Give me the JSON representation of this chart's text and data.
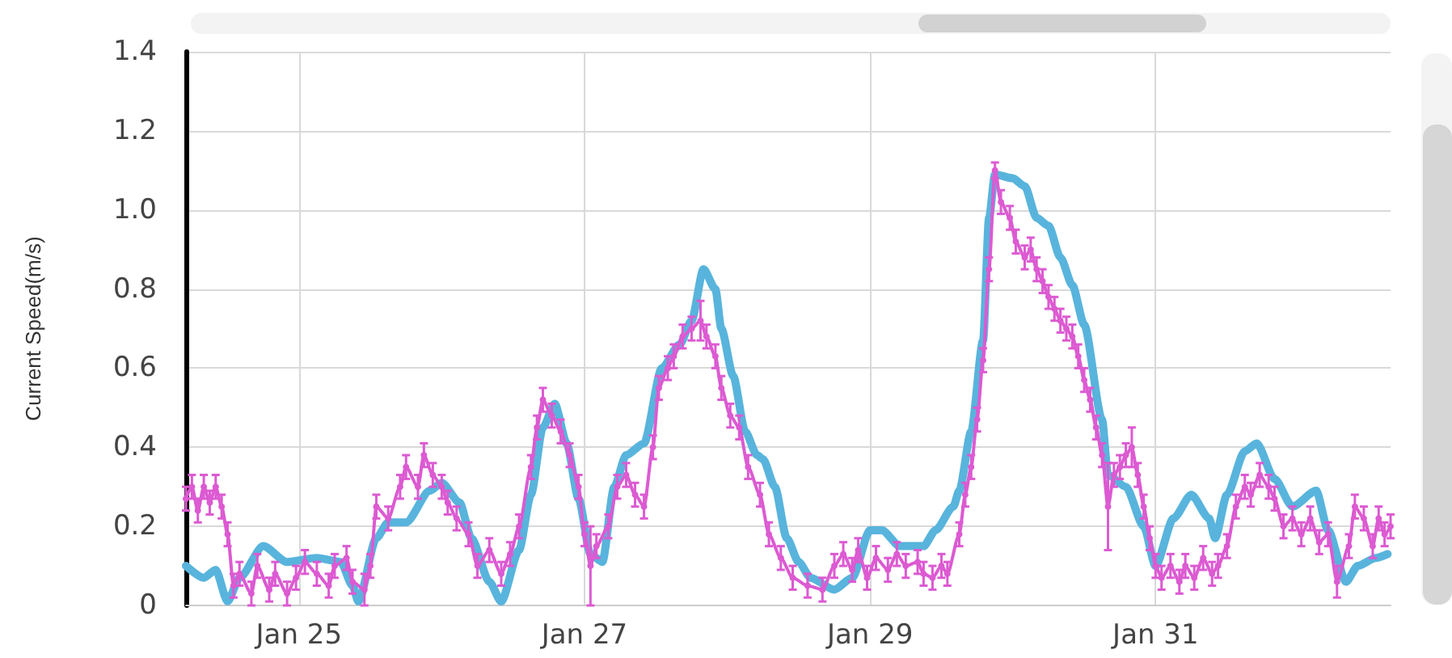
{
  "chart_data": {
    "type": "line",
    "ylabel": "Current Speed(m/s)",
    "xlim": [
      "--01-24T05:00",
      "--02-01T15:30"
    ],
    "xticks": [
      {
        "value": "--01-25",
        "label": "Jan 25"
      },
      {
        "value": "--01-27",
        "label": "Jan 27"
      },
      {
        "value": "--01-29",
        "label": "Jan 29"
      },
      {
        "value": "--01-31",
        "label": "Jan 31"
      }
    ],
    "ylim": [
      0,
      1.4
    ],
    "yticks": [
      0,
      0.2,
      0.4,
      0.6,
      0.8,
      {
        "value": 1,
        "label": "1.0"
      },
      1.2,
      1.4
    ],
    "grid": true,
    "series": [
      {
        "color": "#58b4dc",
        "x": [
          "--01-24T05:00",
          "--01-24T08:00",
          "--01-24T10:00",
          "--01-24T12:00",
          "--01-24T14:00",
          "--01-24T18:00",
          "--01-24T22:00",
          "--01-25T03:00",
          "--01-25T07:00",
          "--01-25T09:00",
          "--01-25T10:00",
          "--01-25T13:00",
          "--01-25T15:00",
          "--01-25T18:00",
          "--01-25T22:00",
          "--01-26T00:00",
          "--01-26T03:00",
          "--01-26T05:00",
          "--01-26T08:00",
          "--01-26T10:00",
          "--01-26T13:00",
          "--01-26T15:00",
          "--01-26T17:00",
          "--01-26T19:00",
          "--01-26T21:00",
          "--01-26T23:00",
          "--01-27T01:00",
          "--01-27T03:00",
          "--01-27T05:00",
          "--01-27T07:00",
          "--01-27T10:00",
          "--01-27T13:00",
          "--01-27T16:00",
          "--01-27T18:00",
          "--01-27T20:00",
          "--01-27T22:00",
          "--01-27T23:00",
          "--01-28T01:00",
          "--01-28T03:00",
          "--01-28T05:00",
          "--01-28T06:00",
          "--01-28T08:00",
          "--01-28T10:00",
          "--01-28T12:00",
          "--01-28T14:00",
          "--01-28T18:00",
          "--01-28T21:00",
          "--01-29T00:00",
          "--01-29T02:00",
          "--01-29T05:00",
          "--01-29T09:00",
          "--01-29T11:00",
          "--01-29T14:00",
          "--01-29T15:00",
          "--01-29T17:00",
          "--01-29T19:00",
          "--01-29T20:00",
          "--01-29T21:00",
          "--01-30T00:00",
          "--01-30T02:00",
          "--01-30T04:00",
          "--01-30T06:00",
          "--01-30T08:00",
          "--01-30T10:00",
          "--01-30T12:00",
          "--01-30T15:00",
          "--01-30T16:00",
          "--01-30T19:00",
          "--01-30T22:00",
          "--01-31T00:00",
          "--01-31T03:00",
          "--01-31T06:00",
          "--01-31T09:00",
          "--01-31T10:00",
          "--01-31T12:00",
          "--01-31T15:00",
          "--01-31T17:00",
          "--01-31T20:00",
          "--01-31T23:00",
          "--02-01T03:00",
          "--02-01T05:00",
          "--02-01T08:00",
          "--02-01T10:00",
          "--02-01T13:00",
          "--02-01T15:00"
        ],
        "values": [
          0.1,
          0.07,
          0.09,
          0.01,
          0.07,
          0.15,
          0.11,
          0.12,
          0.11,
          0.05,
          0.01,
          0.17,
          0.21,
          0.21,
          0.29,
          0.31,
          0.26,
          0.17,
          0.06,
          0.01,
          0.14,
          0.28,
          0.45,
          0.51,
          0.41,
          0.27,
          0.13,
          0.11,
          0.3,
          0.38,
          0.41,
          0.6,
          0.66,
          0.72,
          0.85,
          0.8,
          0.7,
          0.58,
          0.44,
          0.38,
          0.37,
          0.3,
          0.17,
          0.11,
          0.07,
          0.04,
          0.07,
          0.19,
          0.19,
          0.15,
          0.15,
          0.19,
          0.25,
          0.29,
          0.44,
          0.67,
          0.98,
          1.09,
          1.08,
          1.06,
          0.98,
          0.96,
          0.88,
          0.81,
          0.71,
          0.47,
          0.33,
          0.3,
          0.2,
          0.1,
          0.22,
          0.28,
          0.22,
          0.17,
          0.28,
          0.39,
          0.41,
          0.32,
          0.25,
          0.29,
          0.19,
          0.06,
          0.1,
          0.12,
          0.13
        ]
      },
      {
        "color": "#dc5ad2",
        "marker": "circle",
        "x": [
          "--01-24T05:00",
          "--01-24T06:00",
          "--01-24T07:00",
          "--01-24T08:00",
          "--01-24T09:00",
          "--01-24T10:00",
          "--01-24T11:00",
          "--01-24T12:00",
          "--01-24T13:00",
          "--01-24T14:00",
          "--01-24T16:00",
          "--01-24T17:00",
          "--01-24T19:00",
          "--01-24T20:00",
          "--01-24T22:00",
          "--01-24T23:30",
          "--01-25T01:00",
          "--01-25T03:00",
          "--01-25T05:00",
          "--01-25T06:00",
          "--01-25T08:00",
          "--01-25T09:00",
          "--01-25T11:00",
          "--01-25T12:00",
          "--01-25T13:00",
          "--01-25T15:00",
          "--01-25T17:00",
          "--01-25T18:00",
          "--01-25T20:00",
          "--01-25T21:00",
          "--01-25T22:30",
          "--01-26T00:00",
          "--01-26T01:00",
          "--01-26T02:30",
          "--01-26T04:30",
          "--01-26T06:00",
          "--01-26T08:00",
          "--01-26T10:00",
          "--01-26T11:30",
          "--01-26T13:00",
          "--01-26T15:00",
          "--01-26T16:00",
          "--01-26T17:00",
          "--01-26T18:30",
          "--01-26T20:00",
          "--01-26T21:30",
          "--01-26T23:00",
          "--01-27T00:00",
          "--01-27T01:00",
          "--01-27T02:00",
          "--01-27T04:00",
          "--01-27T05:30",
          "--01-27T07:00",
          "--01-27T08:30",
          "--01-27T10:00",
          "--01-27T11:30",
          "--01-27T12:30",
          "--01-27T14:00",
          "--01-27T15:00",
          "--01-27T16:30",
          "--01-27T18:00",
          "--01-27T19:30",
          "--01-27T20:30",
          "--01-27T22:00",
          "--01-27T23:00",
          "--01-28T00:30",
          "--01-28T02:00",
          "--01-28T03:30",
          "--01-28T05:30",
          "--01-28T07:00",
          "--01-28T09:00",
          "--01-28T11:00",
          "--01-28T13:30",
          "--01-28T16:00",
          "--01-28T18:00",
          "--01-28T19:30",
          "--01-28T21:00",
          "--01-28T22:00",
          "--01-28T23:30",
          "--01-29T01:00",
          "--01-29T03:00",
          "--01-29T04:30",
          "--01-29T06:00",
          "--01-29T08:00",
          "--01-29T09:00",
          "--01-29T10:30",
          "--01-29T12:00",
          "--01-29T13:00",
          "--01-29T15:00",
          "--01-29T16:00",
          "--01-29T17:00",
          "--01-29T18:00",
          "--01-29T19:00",
          "--01-29T20:00",
          "--01-29T21:00",
          "--01-29T22:00",
          "--01-29T23:30",
          "--01-30T00:30",
          "--01-30T02:00",
          "--01-30T03:00",
          "--01-30T04:00",
          "--01-30T05:00",
          "--01-30T06:00",
          "--01-30T07:00",
          "--01-30T08:00",
          "--01-30T09:00",
          "--01-30T10:00",
          "--01-30T11:00",
          "--01-30T12:00",
          "--01-30T13:00",
          "--01-30T14:00",
          "--01-30T15:00",
          "--01-30T16:00",
          "--01-30T17:00",
          "--01-30T18:00",
          "--01-30T19:00",
          "--01-30T20:00",
          "--01-30T21:00",
          "--01-30T22:00",
          "--01-30T23:00",
          "--01-31T00:00",
          "--01-31T01:00",
          "--01-31T02:30",
          "--01-31T04:00",
          "--01-31T05:00",
          "--01-31T06:30",
          "--01-31T08:00",
          "--01-31T09:30",
          "--01-31T10:30",
          "--01-31T12:00",
          "--01-31T13:30",
          "--01-31T15:00",
          "--01-31T16:00",
          "--01-31T17:30",
          "--01-31T19:00",
          "--01-31T20:00",
          "--01-31T21:30",
          "--01-31T23:00",
          "--02-01T00:30",
          "--02-01T02:00",
          "--02-01T03:30",
          "--02-01T05:00",
          "--02-01T06:30",
          "--02-01T08:30",
          "--02-01T09:30",
          "--02-01T11:00",
          "--02-01T12:30",
          "--02-01T13:30",
          "--02-01T14:30",
          "--02-01T15:30"
        ],
        "values": [
          0.27,
          0.3,
          0.24,
          0.3,
          0.26,
          0.3,
          0.25,
          0.18,
          0.05,
          0.08,
          0.03,
          0.1,
          0.04,
          0.08,
          0.03,
          0.07,
          0.11,
          0.08,
          0.05,
          0.1,
          0.12,
          0.06,
          0.04,
          0.1,
          0.25,
          0.22,
          0.3,
          0.35,
          0.3,
          0.38,
          0.33,
          0.3,
          0.26,
          0.22,
          0.18,
          0.1,
          0.14,
          0.08,
          0.13,
          0.2,
          0.35,
          0.45,
          0.52,
          0.48,
          0.44,
          0.38,
          0.3,
          0.18,
          0.1,
          0.15,
          0.2,
          0.3,
          0.33,
          0.28,
          0.25,
          0.4,
          0.55,
          0.6,
          0.63,
          0.68,
          0.7,
          0.72,
          0.68,
          0.63,
          0.55,
          0.48,
          0.45,
          0.35,
          0.28,
          0.18,
          0.12,
          0.07,
          0.05,
          0.04,
          0.1,
          0.13,
          0.09,
          0.14,
          0.07,
          0.12,
          0.09,
          0.13,
          0.1,
          0.11,
          0.08,
          0.07,
          0.1,
          0.08,
          0.18,
          0.28,
          0.35,
          0.47,
          0.62,
          0.85,
          1.1,
          1.02,
          0.98,
          0.92,
          0.88,
          0.9,
          0.85,
          0.82,
          0.78,
          0.75,
          0.72,
          0.7,
          0.68,
          0.63,
          0.57,
          0.52,
          0.45,
          0.38,
          0.25,
          0.33,
          0.35,
          0.38,
          0.4,
          0.33,
          0.25,
          0.17,
          0.1,
          0.07,
          0.1,
          0.06,
          0.1,
          0.07,
          0.12,
          0.08,
          0.1,
          0.15,
          0.25,
          0.3,
          0.28,
          0.33,
          0.3,
          0.27,
          0.2,
          0.22,
          0.18,
          0.22,
          0.16,
          0.18,
          0.06,
          0.15,
          0.25,
          0.22,
          0.15,
          0.22,
          0.18,
          0.2
        ],
        "errors": [
          0.03,
          0.03,
          0.03,
          0.03,
          0.03,
          0.03,
          0.03,
          0.03,
          0.03,
          0.03,
          0.03,
          0.03,
          0.03,
          0.03,
          0.03,
          0.03,
          0.03,
          0.03,
          0.03,
          0.03,
          0.03,
          0.03,
          0.04,
          0.03,
          0.03,
          0.03,
          0.03,
          0.03,
          0.03,
          0.03,
          0.03,
          0.03,
          0.03,
          0.03,
          0.03,
          0.03,
          0.03,
          0.03,
          0.03,
          0.03,
          0.03,
          0.03,
          0.03,
          0.03,
          0.03,
          0.03,
          0.03,
          0.03,
          0.1,
          0.03,
          0.03,
          0.03,
          0.03,
          0.03,
          0.03,
          0.03,
          0.03,
          0.03,
          0.03,
          0.03,
          0.03,
          0.05,
          0.03,
          0.03,
          0.03,
          0.03,
          0.03,
          0.03,
          0.03,
          0.03,
          0.03,
          0.03,
          0.03,
          0.03,
          0.03,
          0.03,
          0.03,
          0.03,
          0.03,
          0.03,
          0.03,
          0.03,
          0.03,
          0.03,
          0.03,
          0.03,
          0.03,
          0.03,
          0.03,
          0.03,
          0.03,
          0.03,
          0.03,
          0.03,
          0.02,
          0.03,
          0.03,
          0.03,
          0.03,
          0.03,
          0.03,
          0.03,
          0.03,
          0.03,
          0.03,
          0.03,
          0.03,
          0.03,
          0.03,
          0.03,
          0.03,
          0.03,
          0.11,
          0.03,
          0.03,
          0.03,
          0.05,
          0.03,
          0.03,
          0.03,
          0.03,
          0.03,
          0.03,
          0.03,
          0.03,
          0.03,
          0.03,
          0.03,
          0.03,
          0.03,
          0.03,
          0.03,
          0.03,
          0.03,
          0.03,
          0.03,
          0.03,
          0.03,
          0.03,
          0.03,
          0.03,
          0.03,
          0.04,
          0.03,
          0.03,
          0.03,
          0.03,
          0.03,
          0.03,
          0.03
        ]
      }
    ]
  }
}
